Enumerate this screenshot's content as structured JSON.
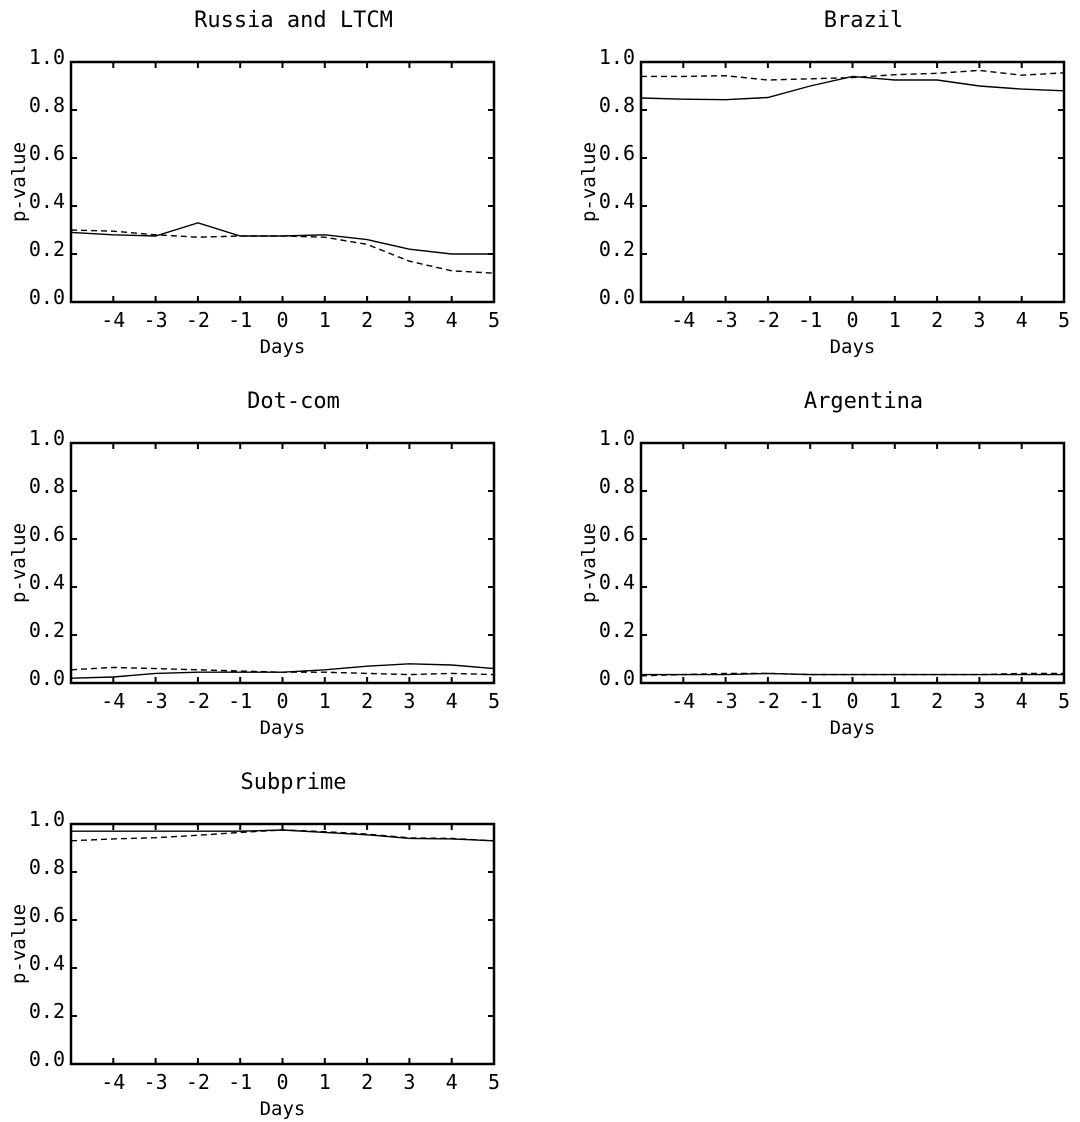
{
  "chart_data": [
    {
      "type": "line",
      "title": "Russia and LTCM",
      "xlabel": "Days",
      "ylabel": "p-value",
      "xlim": [
        -5,
        5
      ],
      "ylim": [
        0,
        1
      ],
      "xticks": [
        "-4",
        "-3",
        "-2",
        "-1",
        "0",
        "1",
        "2",
        "3",
        "4",
        "5"
      ],
      "yticks": [
        "0.0",
        "0.2",
        "0.4",
        "0.6",
        "0.8",
        "1.0"
      ],
      "x": [
        -5,
        -4,
        -3,
        -2,
        -1,
        0,
        1,
        2,
        3,
        4,
        5
      ],
      "series": [
        {
          "style": "solid",
          "values": [
            0.29,
            0.28,
            0.275,
            0.33,
            0.275,
            0.275,
            0.28,
            0.26,
            0.22,
            0.2,
            0.2
          ]
        },
        {
          "style": "dashed",
          "values": [
            0.3,
            0.295,
            0.28,
            0.27,
            0.275,
            0.275,
            0.27,
            0.24,
            0.17,
            0.13,
            0.12
          ]
        }
      ]
    },
    {
      "type": "line",
      "title": "Brazil",
      "xlabel": "Days",
      "ylabel": "p-value",
      "xlim": [
        -5,
        5
      ],
      "ylim": [
        0,
        1
      ],
      "xticks": [
        "-4",
        "-3",
        "-2",
        "-1",
        "0",
        "1",
        "2",
        "3",
        "4",
        "5"
      ],
      "yticks": [
        "0.0",
        "0.2",
        "0.4",
        "0.6",
        "0.8",
        "1.0"
      ],
      "x": [
        -5,
        -4,
        -3,
        -2,
        -1,
        0,
        1,
        2,
        3,
        4,
        5
      ],
      "series": [
        {
          "style": "solid",
          "values": [
            0.85,
            0.845,
            0.843,
            0.852,
            0.9,
            0.94,
            0.925,
            0.925,
            0.9,
            0.887,
            0.88
          ]
        },
        {
          "style": "dashed",
          "values": [
            0.94,
            0.94,
            0.943,
            0.925,
            0.93,
            0.935,
            0.947,
            0.953,
            0.965,
            0.945,
            0.955
          ]
        }
      ]
    },
    {
      "type": "line",
      "title": "Dot-com",
      "xlabel": "Days",
      "ylabel": "p-value",
      "xlim": [
        -5,
        5
      ],
      "ylim": [
        0,
        1
      ],
      "xticks": [
        "-4",
        "-3",
        "-2",
        "-1",
        "0",
        "1",
        "2",
        "3",
        "4",
        "5"
      ],
      "yticks": [
        "0.0",
        "0.2",
        "0.4",
        "0.6",
        "0.8",
        "1.0"
      ],
      "x": [
        -5,
        -4,
        -3,
        -2,
        -1,
        0,
        1,
        2,
        3,
        4,
        5
      ],
      "series": [
        {
          "style": "solid",
          "values": [
            0.02,
            0.025,
            0.04,
            0.045,
            0.045,
            0.045,
            0.055,
            0.07,
            0.08,
            0.075,
            0.06
          ]
        },
        {
          "style": "dashed",
          "values": [
            0.055,
            0.065,
            0.06,
            0.055,
            0.05,
            0.045,
            0.045,
            0.04,
            0.035,
            0.04,
            0.035
          ]
        }
      ]
    },
    {
      "type": "line",
      "title": "Argentina",
      "xlabel": "Days",
      "ylabel": "p-value",
      "xlim": [
        -5,
        5
      ],
      "ylim": [
        0,
        1
      ],
      "xticks": [
        "-4",
        "-3",
        "-2",
        "-1",
        "0",
        "1",
        "2",
        "3",
        "4",
        "5"
      ],
      "yticks": [
        "0.0",
        "0.2",
        "0.4",
        "0.6",
        "0.8",
        "1.0"
      ],
      "x": [
        -5,
        -4,
        -3,
        -2,
        -1,
        0,
        1,
        2,
        3,
        4,
        5
      ],
      "series": [
        {
          "style": "solid",
          "values": [
            0.035,
            0.035,
            0.035,
            0.04,
            0.035,
            0.035,
            0.035,
            0.035,
            0.035,
            0.035,
            0.035
          ]
        },
        {
          "style": "dashed",
          "values": [
            0.03,
            0.035,
            0.04,
            0.04,
            0.035,
            0.035,
            0.035,
            0.035,
            0.035,
            0.04,
            0.04
          ]
        }
      ]
    },
    {
      "type": "line",
      "title": "Subprime",
      "xlabel": "Days",
      "ylabel": "p-value",
      "xlim": [
        -5,
        5
      ],
      "ylim": [
        0,
        1
      ],
      "xticks": [
        "-4",
        "-3",
        "-2",
        "-1",
        "0",
        "1",
        "2",
        "3",
        "4",
        "5"
      ],
      "yticks": [
        "0.0",
        "0.2",
        "0.4",
        "0.6",
        "0.8",
        "1.0"
      ],
      "x": [
        -5,
        -4,
        -3,
        -2,
        -1,
        0,
        1,
        2,
        3,
        4,
        5
      ],
      "series": [
        {
          "style": "solid",
          "values": [
            0.97,
            0.97,
            0.97,
            0.97,
            0.97,
            0.975,
            0.965,
            0.955,
            0.94,
            0.938,
            0.93
          ]
        },
        {
          "style": "dashed",
          "values": [
            0.93,
            0.938,
            0.943,
            0.953,
            0.965,
            0.975,
            0.968,
            0.958,
            0.942,
            0.94,
            0.93
          ]
        }
      ]
    }
  ]
}
